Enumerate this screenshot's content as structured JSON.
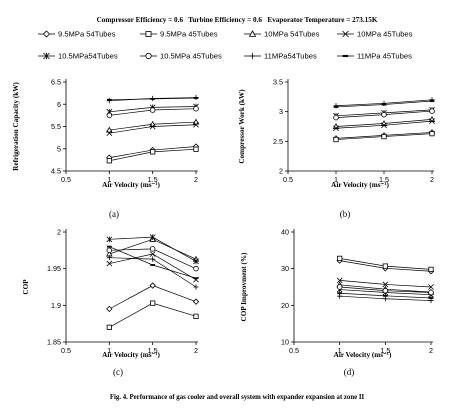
{
  "header": "Compressor Efficiency = 0.6   Turbine Efficiency = 0.6   Evaporator Temperature = 273.15K",
  "legend": [
    {
      "label": "9.5MPa 54Tubes",
      "marker": "diamond"
    },
    {
      "label": "9.5MPa 45Tubes",
      "marker": "square"
    },
    {
      "label": "10MPa 54Tubes",
      "marker": "triangle"
    },
    {
      "label": "10MPa 45Tubes",
      "marker": "x"
    },
    {
      "label": "10.5MPa54Tubes",
      "marker": "star"
    },
    {
      "label": "10.5MPa 45Tubes",
      "marker": "circle"
    },
    {
      "label": "11MPa54Tubes",
      "marker": "plus"
    },
    {
      "label": "11MPa 45Tubes",
      "marker": "dash"
    }
  ],
  "caption": "Fig. 4. Performance of gas cooler and overall system with expander expansion at zone II",
  "chart_data": [
    {
      "type": "line",
      "panel_label": "(a)",
      "xlabel": "Air Velocity (ms⁻¹)",
      "ylabel": "Refrigeration Capacity (kW)",
      "x": [
        1,
        1.5,
        2
      ],
      "xlim": [
        0.5,
        2
      ],
      "xticks": [
        "0.5",
        "1",
        "1.5",
        "2"
      ],
      "ylim": [
        4.5,
        6.5
      ],
      "yticks": [
        "4.5",
        "5",
        "5.5",
        "6",
        "6.5"
      ],
      "series": [
        {
          "name": "9.5MPa 54Tubes",
          "values": [
            4.8,
            4.97,
            5.05
          ]
        },
        {
          "name": "9.5MPa 45Tubes",
          "values": [
            4.73,
            4.93,
            4.99
          ]
        },
        {
          "name": "10MPa 54Tubes",
          "values": [
            5.42,
            5.55,
            5.6
          ]
        },
        {
          "name": "10MPa 45Tubes",
          "values": [
            5.35,
            5.5,
            5.54
          ]
        },
        {
          "name": "10.5MPa54Tubes",
          "values": [
            5.83,
            5.93,
            5.95
          ]
        },
        {
          "name": "10.5MPa 45Tubes",
          "values": [
            5.75,
            5.87,
            5.9
          ]
        },
        {
          "name": "11MPa54Tubes",
          "values": [
            6.08,
            6.13,
            6.15
          ]
        },
        {
          "name": "11MPa 45Tubes",
          "values": [
            6.1,
            6.12,
            6.14
          ]
        }
      ]
    },
    {
      "type": "line",
      "panel_label": "(b)",
      "xlabel": "Air Velocity (ms⁻¹)",
      "ylabel": "Compressor Work (kW)",
      "x": [
        1,
        1.5,
        2
      ],
      "xlim": [
        0.5,
        2
      ],
      "xticks": [
        "0.5",
        "1",
        "1.5",
        "2"
      ],
      "ylim": [
        2,
        3.5
      ],
      "yticks": [
        "2",
        "2.5",
        "3",
        "3.5"
      ],
      "series": [
        {
          "name": "9.5MPa 54Tubes",
          "values": [
            2.55,
            2.6,
            2.65
          ]
        },
        {
          "name": "9.5MPa 45Tubes",
          "values": [
            2.53,
            2.58,
            2.63
          ]
        },
        {
          "name": "10MPa 54Tubes",
          "values": [
            2.75,
            2.8,
            2.87
          ]
        },
        {
          "name": "10MPa 45Tubes",
          "values": [
            2.72,
            2.77,
            2.84
          ]
        },
        {
          "name": "10.5MPa54Tubes",
          "values": [
            2.93,
            2.98,
            3.03
          ]
        },
        {
          "name": "10.5MPa 45Tubes",
          "values": [
            2.9,
            2.95,
            3.01
          ]
        },
        {
          "name": "11MPa54Tubes",
          "values": [
            3.1,
            3.14,
            3.2
          ]
        },
        {
          "name": "11MPa 45Tubes",
          "values": [
            3.08,
            3.12,
            3.18
          ]
        }
      ]
    },
    {
      "type": "line",
      "panel_label": "(c)",
      "xlabel": "Air Velocity (ms⁻¹)",
      "ylabel": "COP",
      "x": [
        1,
        1.5,
        2
      ],
      "xlim": [
        0.5,
        2
      ],
      "xticks": [
        "0.5",
        "1",
        "1.5",
        "2"
      ],
      "ylim": [
        1.85,
        2.0
      ],
      "yticks": [
        "1.85",
        "1.9",
        "1.95",
        "2"
      ],
      "series": [
        {
          "name": "9.5MPa 54Tubes",
          "values": [
            1.895,
            1.927,
            1.905
          ]
        },
        {
          "name": "9.5MPa 45Tubes",
          "values": [
            1.87,
            1.903,
            1.885
          ]
        },
        {
          "name": "10MPa 54Tubes",
          "values": [
            1.97,
            1.99,
            1.963
          ]
        },
        {
          "name": "10MPa 45Tubes",
          "values": [
            1.957,
            1.97,
            1.935
          ]
        },
        {
          "name": "10.5MPa54Tubes",
          "values": [
            1.99,
            1.993,
            1.96
          ]
        },
        {
          "name": "10.5MPa 45Tubes",
          "values": [
            1.975,
            1.977,
            1.95
          ]
        },
        {
          "name": "11MPa54Tubes",
          "values": [
            1.965,
            1.963,
            1.925
          ]
        },
        {
          "name": "11MPa 45Tubes",
          "values": [
            1.98,
            1.955,
            1.937
          ]
        }
      ]
    },
    {
      "type": "line",
      "panel_label": "(d)",
      "xlabel": "Air Velocity (ms⁻¹)",
      "ylabel": "COP Improvment (%)",
      "x": [
        1,
        1.5,
        2
      ],
      "xlim": [
        0.5,
        2
      ],
      "xticks": [
        "0.5",
        "1",
        "1.5",
        "2"
      ],
      "ylim": [
        10,
        40
      ],
      "yticks": [
        "10",
        "20",
        "30",
        "40"
      ],
      "series": [
        {
          "name": "9.5MPa 54Tubes",
          "values": [
            32.2,
            30.1,
            29.3
          ]
        },
        {
          "name": "9.5MPa 45Tubes",
          "values": [
            32.8,
            30.7,
            29.8
          ]
        },
        {
          "name": "10MPa 54Tubes",
          "values": [
            25.6,
            24.4,
            23.6
          ]
        },
        {
          "name": "10MPa 45Tubes",
          "values": [
            26.8,
            25.7,
            25.0
          ]
        },
        {
          "name": "10.5MPa54Tubes",
          "values": [
            24.3,
            23.5,
            22.9
          ]
        },
        {
          "name": "10.5MPa 45Tubes",
          "values": [
            25.0,
            24.0,
            23.5
          ]
        },
        {
          "name": "11MPa54Tubes",
          "values": [
            22.5,
            21.8,
            21.3
          ]
        },
        {
          "name": "11MPa 45Tubes",
          "values": [
            23.3,
            22.6,
            22.0
          ]
        }
      ]
    }
  ]
}
